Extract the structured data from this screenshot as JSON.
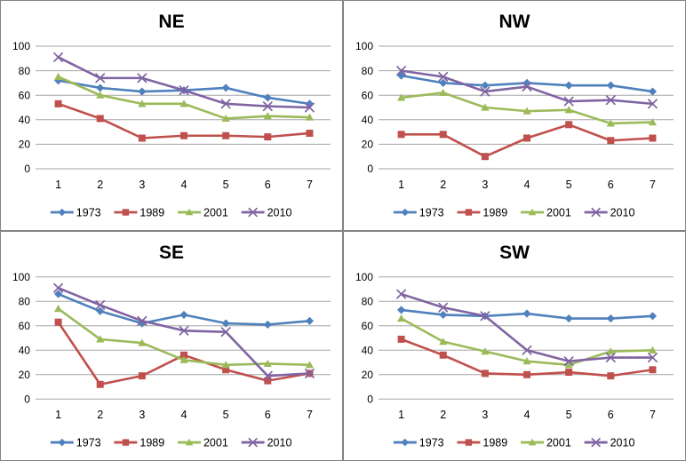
{
  "page": {
    "background": "#FFFFFF",
    "border_color": "#848484",
    "gridline_color": "#A6A6A6",
    "text_color": "#000000"
  },
  "series_styles": [
    {
      "name": "1973",
      "color": "#4F81BD",
      "marker": "diamond"
    },
    {
      "name": "1989",
      "color": "#C0504D",
      "marker": "square"
    },
    {
      "name": "2001",
      "color": "#9BBB59",
      "marker": "triangle"
    },
    {
      "name": "2010",
      "color": "#8064A2",
      "marker": "x"
    }
  ],
  "chart_data": [
    {
      "type": "line",
      "title": "NE",
      "x": [
        "1",
        "2",
        "3",
        "4",
        "5",
        "6",
        "7"
      ],
      "ylim": [
        0,
        100
      ],
      "ytick_interval": 20,
      "grid": true,
      "legend_position": "bottom",
      "series": [
        {
          "name": "1973",
          "color": "#4F81BD",
          "marker": "diamond",
          "values": [
            72,
            66,
            63,
            64,
            66,
            58,
            53
          ]
        },
        {
          "name": "1989",
          "color": "#C0504D",
          "marker": "square",
          "values": [
            53,
            41,
            25,
            27,
            27,
            26,
            29
          ]
        },
        {
          "name": "2001",
          "color": "#9BBB59",
          "marker": "triangle",
          "values": [
            75,
            60,
            53,
            53,
            41,
            43,
            42
          ]
        },
        {
          "name": "2010",
          "color": "#8064A2",
          "marker": "x",
          "values": [
            91,
            74,
            74,
            64,
            53,
            51,
            50
          ]
        }
      ]
    },
    {
      "type": "line",
      "title": "NW",
      "x": [
        "1",
        "2",
        "3",
        "4",
        "5",
        "6",
        "7"
      ],
      "ylim": [
        0,
        100
      ],
      "ytick_interval": 20,
      "grid": true,
      "legend_position": "bottom",
      "series": [
        {
          "name": "1973",
          "color": "#4F81BD",
          "marker": "diamond",
          "values": [
            76,
            70,
            68,
            70,
            68,
            68,
            63
          ]
        },
        {
          "name": "1989",
          "color": "#C0504D",
          "marker": "square",
          "values": [
            28,
            28,
            10,
            25,
            36,
            23,
            25
          ]
        },
        {
          "name": "2001",
          "color": "#9BBB59",
          "marker": "triangle",
          "values": [
            58,
            62,
            50,
            47,
            48,
            37,
            38
          ]
        },
        {
          "name": "2010",
          "color": "#8064A2",
          "marker": "x",
          "values": [
            80,
            75,
            63,
            67,
            55,
            56,
            53
          ]
        }
      ]
    },
    {
      "type": "line",
      "title": "SE",
      "x": [
        "1",
        "2",
        "3",
        "4",
        "5",
        "6",
        "7"
      ],
      "ylim": [
        0,
        100
      ],
      "ytick_interval": 20,
      "grid": true,
      "legend_position": "bottom",
      "series": [
        {
          "name": "1973",
          "color": "#4F81BD",
          "marker": "diamond",
          "values": [
            86,
            72,
            62,
            69,
            62,
            61,
            64
          ]
        },
        {
          "name": "1989",
          "color": "#C0504D",
          "marker": "square",
          "values": [
            63,
            12,
            19,
            36,
            24,
            15,
            21
          ]
        },
        {
          "name": "2001",
          "color": "#9BBB59",
          "marker": "triangle",
          "values": [
            74,
            49,
            46,
            32,
            28,
            29,
            28
          ]
        },
        {
          "name": "2010",
          "color": "#8064A2",
          "marker": "x",
          "values": [
            91,
            77,
            64,
            56,
            55,
            19,
            21
          ]
        }
      ]
    },
    {
      "type": "line",
      "title": "SW",
      "x": [
        "1",
        "2",
        "3",
        "4",
        "5",
        "6",
        "7"
      ],
      "ylim": [
        0,
        100
      ],
      "ytick_interval": 20,
      "grid": true,
      "legend_position": "bottom",
      "series": [
        {
          "name": "1973",
          "color": "#4F81BD",
          "marker": "diamond",
          "values": [
            73,
            69,
            68,
            70,
            66,
            66,
            68
          ]
        },
        {
          "name": "1989",
          "color": "#C0504D",
          "marker": "square",
          "values": [
            49,
            36,
            21,
            20,
            22,
            19,
            24
          ]
        },
        {
          "name": "2001",
          "color": "#9BBB59",
          "marker": "triangle",
          "values": [
            66,
            47,
            39,
            31,
            28,
            39,
            40
          ]
        },
        {
          "name": "2010",
          "color": "#8064A2",
          "marker": "x",
          "values": [
            86,
            75,
            68,
            40,
            31,
            34,
            34
          ]
        }
      ]
    }
  ]
}
